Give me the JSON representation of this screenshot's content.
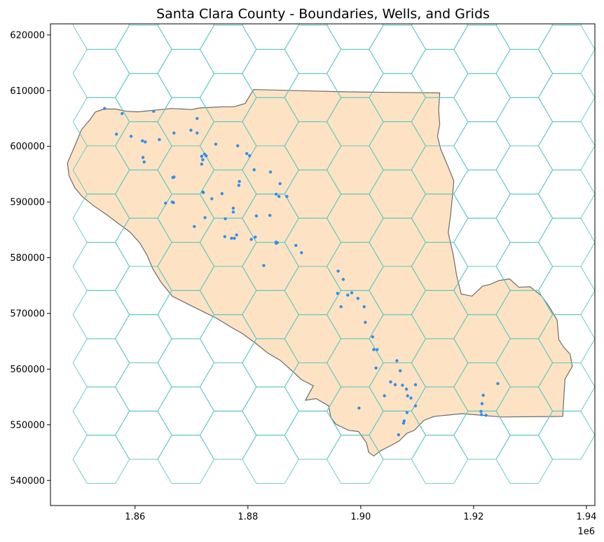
{
  "title": "Santa Clara County - Boundaries, Wells, and Grids",
  "colors": {
    "county_fill": "#fde3c3",
    "county_edge": "#6b6b6b",
    "hex_edge": "#5ec8c4",
    "well": "#2f8ff2",
    "axis": "#000000"
  },
  "x_axis": {
    "ticks": [
      1860000,
      1880000,
      1900000,
      1920000,
      1940000
    ],
    "tick_labels": [
      "1.86",
      "1.88",
      "1.90",
      "1.92",
      "1.94"
    ],
    "offset_label": "1e6",
    "range": [
      1845000,
      1941500
    ]
  },
  "y_axis": {
    "ticks": [
      540000,
      550000,
      560000,
      570000,
      580000,
      590000,
      600000,
      610000,
      620000
    ],
    "tick_labels": [
      "540000",
      "550000",
      "560000",
      "570000",
      "580000",
      "590000",
      "600000",
      "610000",
      "620000"
    ],
    "range": [
      535500,
      622000
    ]
  },
  "hex_grid": {
    "radius": 5000,
    "x_origin": 1854000,
    "y_origin": 543800,
    "columns": 12,
    "rows": 10
  },
  "county_boundary": [
    [
      1848000,
      597000
    ],
    [
      1849500,
      600500
    ],
    [
      1850500,
      603000
    ],
    [
      1852000,
      604800
    ],
    [
      1853000,
      606200
    ],
    [
      1854500,
      606700
    ],
    [
      1856500,
      606700
    ],
    [
      1858500,
      606300
    ],
    [
      1860500,
      606200
    ],
    [
      1862500,
      606400
    ],
    [
      1864500,
      606600
    ],
    [
      1866500,
      606800
    ],
    [
      1868500,
      606700
    ],
    [
      1870000,
      606600
    ],
    [
      1871500,
      606900
    ],
    [
      1873500,
      607000
    ],
    [
      1875500,
      607100
    ],
    [
      1877500,
      607100
    ],
    [
      1879500,
      607700
    ],
    [
      1881000,
      610200
    ],
    [
      1889000,
      610000
    ],
    [
      1897000,
      609800
    ],
    [
      1905000,
      609700
    ],
    [
      1914000,
      609600
    ],
    [
      1913800,
      606500
    ],
    [
      1914000,
      604000
    ],
    [
      1913600,
      601800
    ],
    [
      1914200,
      599400
    ],
    [
      1915300,
      596800
    ],
    [
      1916500,
      593800
    ],
    [
      1916200,
      590500
    ],
    [
      1915900,
      587500
    ],
    [
      1915500,
      584500
    ],
    [
      1916400,
      580500
    ],
    [
      1917000,
      576800
    ],
    [
      1917800,
      573500
    ],
    [
      1919700,
      573100
    ],
    [
      1921600,
      574900
    ],
    [
      1922900,
      575200
    ],
    [
      1924500,
      575900
    ],
    [
      1926400,
      576200
    ],
    [
      1928000,
      574700
    ],
    [
      1930000,
      574800
    ],
    [
      1932000,
      573200
    ],
    [
      1933400,
      571200
    ],
    [
      1934800,
      568800
    ],
    [
      1935100,
      565300
    ],
    [
      1936000,
      563900
    ],
    [
      1937100,
      562700
    ],
    [
      1937500,
      560500
    ],
    [
      1936200,
      558200
    ],
    [
      1935800,
      551500
    ],
    [
      1925000,
      551400
    ],
    [
      1918000,
      552000
    ],
    [
      1913000,
      551500
    ],
    [
      1911200,
      550800
    ],
    [
      1909500,
      549000
    ],
    [
      1908200,
      548500
    ],
    [
      1906800,
      547100
    ],
    [
      1905200,
      546200
    ],
    [
      1903600,
      545400
    ],
    [
      1902300,
      544400
    ],
    [
      1901400,
      545100
    ],
    [
      1901000,
      546800
    ],
    [
      1899600,
      548800
    ],
    [
      1897900,
      549000
    ],
    [
      1895600,
      550100
    ],
    [
      1894700,
      551300
    ],
    [
      1894300,
      553400
    ],
    [
      1892100,
      554700
    ],
    [
      1890200,
      554400
    ],
    [
      1891600,
      557000
    ],
    [
      1889500,
      558100
    ],
    [
      1887700,
      559800
    ],
    [
      1885700,
      561600
    ],
    [
      1883500,
      562900
    ],
    [
      1881300,
      564700
    ],
    [
      1879000,
      566400
    ],
    [
      1876900,
      567600
    ],
    [
      1874500,
      569100
    ],
    [
      1872500,
      570100
    ],
    [
      1869700,
      571500
    ],
    [
      1866600,
      573100
    ],
    [
      1864600,
      575600
    ],
    [
      1863100,
      578100
    ],
    [
      1862100,
      580500
    ],
    [
      1860800,
      582700
    ],
    [
      1859100,
      584600
    ],
    [
      1857100,
      586100
    ],
    [
      1855000,
      587700
    ],
    [
      1852700,
      589300
    ],
    [
      1850600,
      591000
    ],
    [
      1849300,
      592600
    ],
    [
      1848300,
      594700
    ],
    [
      1848000,
      597000
    ]
  ],
  "wells": [
    [
      1854600,
      606800
    ],
    [
      1857700,
      605900
    ],
    [
      1863300,
      606300
    ],
    [
      1871000,
      605000
    ],
    [
      1856700,
      602200
    ],
    [
      1859300,
      601800
    ],
    [
      1861300,
      601000
    ],
    [
      1861800,
      600800
    ],
    [
      1864300,
      601200
    ],
    [
      1866900,
      602400
    ],
    [
      1869900,
      602900
    ],
    [
      1871000,
      602400
    ],
    [
      1874300,
      600400
    ],
    [
      1871800,
      598200
    ],
    [
      1872300,
      598600
    ],
    [
      1872600,
      598300
    ],
    [
      1872000,
      597600
    ],
    [
      1878200,
      600100
    ],
    [
      1879800,
      598700
    ],
    [
      1880300,
      598300
    ],
    [
      1861400,
      598000
    ],
    [
      1861600,
      597200
    ],
    [
      1871800,
      596800
    ],
    [
      1881100,
      595800
    ],
    [
      1884000,
      595400
    ],
    [
      1866900,
      594500
    ],
    [
      1866700,
      594400
    ],
    [
      1878500,
      593700
    ],
    [
      1878400,
      593000
    ],
    [
      1872000,
      591800
    ],
    [
      1872100,
      591700
    ],
    [
      1875400,
      591500
    ],
    [
      1873600,
      590600
    ],
    [
      1885000,
      591400
    ],
    [
      1885500,
      591000
    ],
    [
      1865400,
      589800
    ],
    [
      1866600,
      590000
    ],
    [
      1866800,
      589900
    ],
    [
      1877400,
      588900
    ],
    [
      1877400,
      588200
    ],
    [
      1872400,
      587200
    ],
    [
      1876000,
      587000
    ],
    [
      1881500,
      587500
    ],
    [
      1883900,
      587600
    ],
    [
      1870500,
      585600
    ],
    [
      1875900,
      583800
    ],
    [
      1877100,
      583500
    ],
    [
      1877600,
      583500
    ],
    [
      1878000,
      584100
    ],
    [
      1880600,
      583300
    ],
    [
      1881300,
      583700
    ],
    [
      1885000,
      582800
    ],
    [
      1885200,
      582700
    ],
    [
      1885000,
      582600
    ],
    [
      1888500,
      582200
    ],
    [
      1889500,
      580900
    ],
    [
      1882800,
      578600
    ],
    [
      1885700,
      593300
    ],
    [
      1886900,
      591000
    ],
    [
      1896000,
      577600
    ],
    [
      1896900,
      576100
    ],
    [
      1895900,
      573600
    ],
    [
      1897700,
      573300
    ],
    [
      1898400,
      573700
    ],
    [
      1899500,
      572700
    ],
    [
      1900600,
      571200
    ],
    [
      1896500,
      571200
    ],
    [
      1900800,
      568400
    ],
    [
      1902100,
      565800
    ],
    [
      1902300,
      563500
    ],
    [
      1902900,
      563500
    ],
    [
      1902700,
      560200
    ],
    [
      1906400,
      561500
    ],
    [
      1907000,
      559700
    ],
    [
      1905300,
      557700
    ],
    [
      1906100,
      557200
    ],
    [
      1907400,
      557100
    ],
    [
      1908100,
      556400
    ],
    [
      1909700,
      557200
    ],
    [
      1908300,
      555200
    ],
    [
      1908900,
      554800
    ],
    [
      1904200,
      555200
    ],
    [
      1909700,
      553400
    ],
    [
      1908200,
      552200
    ],
    [
      1907700,
      550700
    ],
    [
      1907600,
      550300
    ],
    [
      1906700,
      548200
    ],
    [
      1921700,
      555300
    ],
    [
      1921500,
      553800
    ],
    [
      1921300,
      552400
    ],
    [
      1921400,
      551800
    ],
    [
      1924300,
      557400
    ],
    [
      1922200,
      551700
    ],
    [
      1899700,
      553000
    ]
  ]
}
